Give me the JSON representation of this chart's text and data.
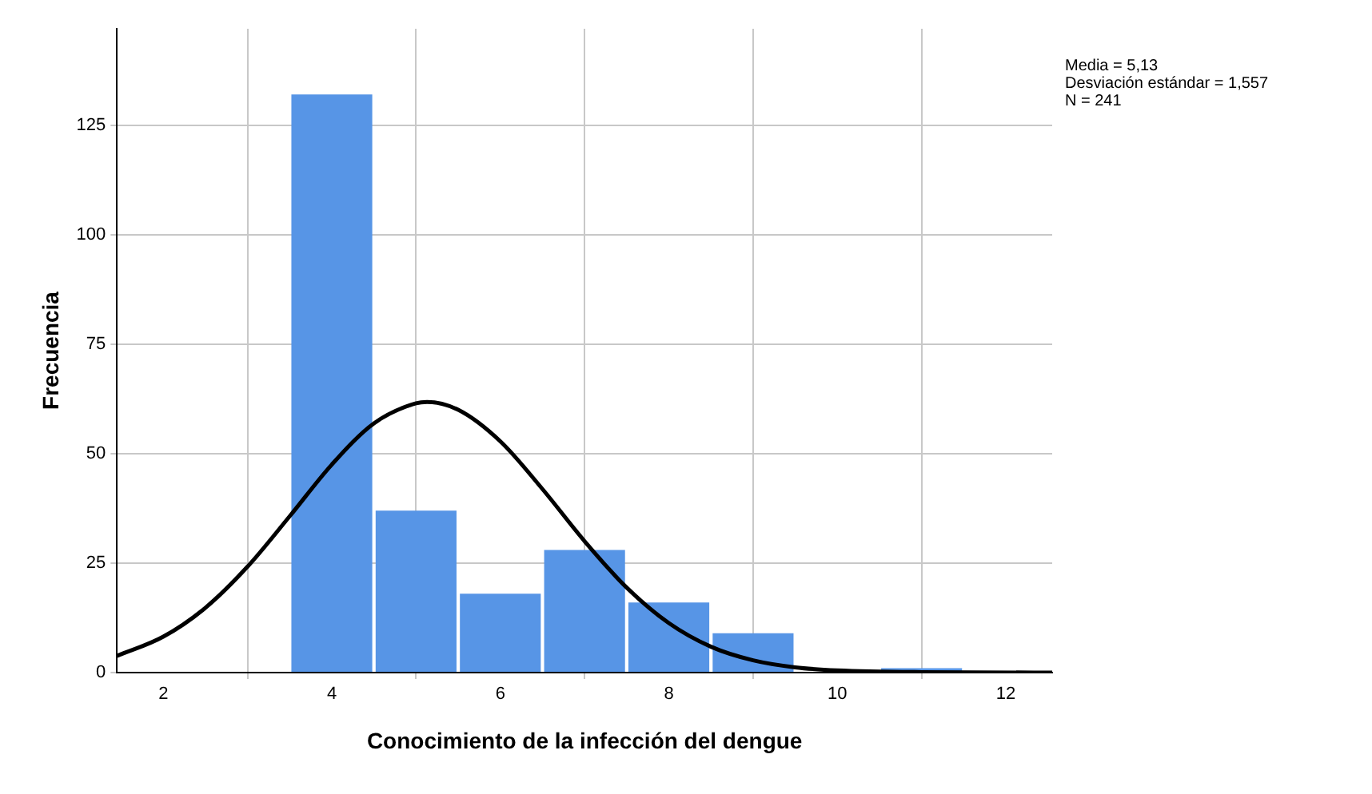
{
  "chart_data": {
    "type": "histogram",
    "xlabel": "Conocimiento de la infección del dengue",
    "ylabel": "Frecuencia",
    "bins": [
      3.5,
      4.5,
      5.5,
      6.5,
      7.5,
      8.5,
      9.5,
      10.5,
      11.5
    ],
    "series": [
      {
        "color": "#5795e6",
        "values": [
          132,
          37,
          18,
          28,
          16,
          9,
          0,
          1
        ]
      },
      {
        "type": "line",
        "color": "#000000",
        "x": [
          1.45,
          2,
          2.5,
          3,
          3.5,
          4,
          4.5,
          5,
          5.13,
          5.5,
          6,
          6.5,
          7,
          7.5,
          8,
          8.5,
          9,
          9.5,
          10,
          11,
          12.55
        ],
        "values": [
          3.8,
          8.2,
          14.8,
          24.2,
          35.7,
          47.5,
          56.9,
          61.5,
          61.8,
          60.0,
          52.8,
          41.9,
          30.0,
          19.4,
          11.3,
          5.9,
          2.8,
          1.2,
          0.5,
          0.1,
          0
        ]
      }
    ],
    "xlim": [
      1.45,
      12.55
    ],
    "xticks": [
      2,
      4,
      6,
      8,
      10,
      12
    ],
    "ylim": [
      0,
      147
    ],
    "yticks": [
      0,
      25,
      50,
      75,
      100,
      125
    ],
    "grid": true,
    "marker": "none",
    "line_style": "solid",
    "annotations": [
      "Media = 5,13",
      "Desviación estándar = 1,557",
      "N = 241"
    ]
  }
}
